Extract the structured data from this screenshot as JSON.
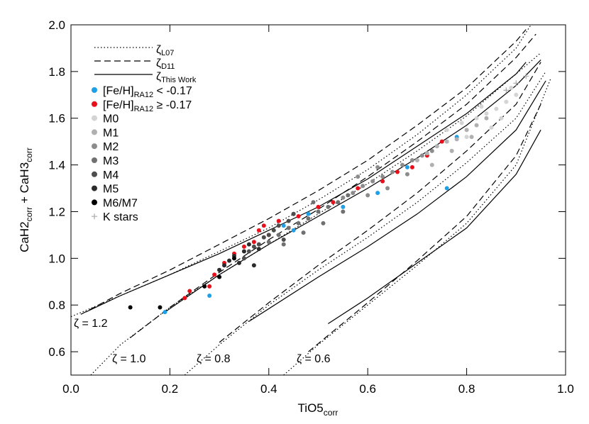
{
  "chart_data": {
    "type": "scatter",
    "x_label": {
      "main": "TiO5",
      "sub": "corr"
    },
    "y_label": {
      "main": "CaH2",
      "sub": "corr",
      "main2": " + CaH3",
      "sub2": "corr"
    },
    "xlim": [
      0.0,
      1.0
    ],
    "ylim": [
      0.5,
      2.0
    ],
    "xticks": [
      {
        "value": 0.0,
        "label": "0.0"
      },
      0.2,
      0.4,
      0.6,
      0.8,
      {
        "value": 1.0,
        "label": "1.0"
      }
    ],
    "yticks": [
      0.6,
      0.8,
      {
        "value": 1.0,
        "label": "1.0"
      },
      1.2,
      1.4,
      1.6,
      1.8,
      {
        "value": 2.0,
        "label": "2.0"
      }
    ],
    "line_styles": [
      {
        "symbol": "ζ",
        "sub": "L07",
        "dash": "dotted"
      },
      {
        "symbol": "ζ",
        "sub": "D11",
        "dash": "dashed"
      },
      {
        "symbol": "ζ",
        "sub": "This Work",
        "dash": "solid"
      }
    ],
    "curves": [
      {
        "dash": "dotted",
        "x": [
          0.0,
          0.1,
          0.2,
          0.3,
          0.4,
          0.5,
          0.6,
          0.7,
          0.8,
          0.9,
          0.93
        ],
        "y": [
          0.75,
          0.84,
          0.93,
          1.03,
          1.13,
          1.25,
          1.38,
          1.53,
          1.7,
          1.9,
          2.0
        ]
      },
      {
        "dash": "dashed",
        "x": [
          0.02,
          0.1,
          0.2,
          0.3,
          0.4,
          0.5,
          0.6,
          0.7,
          0.8,
          0.9,
          0.92
        ],
        "y": [
          0.76,
          0.85,
          0.95,
          1.06,
          1.17,
          1.29,
          1.42,
          1.57,
          1.73,
          1.93,
          1.98
        ]
      },
      {
        "dash": "solid",
        "x": [
          0.03,
          0.1,
          0.2,
          0.3,
          0.4,
          0.5,
          0.6,
          0.7,
          0.8,
          0.9,
          0.92
        ],
        "y": [
          0.77,
          0.84,
          0.93,
          1.02,
          1.12,
          1.22,
          1.34,
          1.48,
          1.62,
          1.79,
          1.84
        ]
      },
      {
        "dash": "dotted",
        "x": [
          0.04,
          0.1,
          0.2,
          0.3,
          0.4,
          0.5,
          0.6,
          0.7,
          0.8,
          0.9,
          0.95
        ],
        "y": [
          0.5,
          0.63,
          0.79,
          0.93,
          1.06,
          1.19,
          1.32,
          1.46,
          1.61,
          1.79,
          1.88
        ]
      },
      {
        "dash": "dashed",
        "x": [
          0.12,
          0.2,
          0.3,
          0.4,
          0.5,
          0.6,
          0.7,
          0.8,
          0.9,
          0.94
        ],
        "y": [
          0.66,
          0.79,
          0.94,
          1.08,
          1.21,
          1.35,
          1.5,
          1.66,
          1.86,
          1.96
        ]
      },
      {
        "dash": "solid",
        "x": [
          0.19,
          0.3,
          0.4,
          0.5,
          0.6,
          0.7,
          0.8,
          0.9,
          0.95
        ],
        "y": [
          0.77,
          0.93,
          1.06,
          1.18,
          1.3,
          1.43,
          1.57,
          1.74,
          1.85
        ]
      },
      {
        "dash": "dotted",
        "x": [
          0.23,
          0.3,
          0.4,
          0.5,
          0.6,
          0.7,
          0.8,
          0.9,
          0.96
        ],
        "y": [
          0.5,
          0.63,
          0.8,
          0.95,
          1.09,
          1.24,
          1.41,
          1.6,
          1.8
        ]
      },
      {
        "dash": "dashed",
        "x": [
          0.3,
          0.4,
          0.5,
          0.6,
          0.7,
          0.8,
          0.9,
          0.95
        ],
        "y": [
          0.64,
          0.81,
          0.97,
          1.12,
          1.28,
          1.46,
          1.66,
          1.84
        ]
      },
      {
        "dash": "solid",
        "x": [
          0.36,
          0.5,
          0.6,
          0.7,
          0.8,
          0.9,
          0.96
        ],
        "y": [
          0.73,
          0.92,
          1.05,
          1.19,
          1.35,
          1.55,
          1.76
        ]
      },
      {
        "dash": "dotted",
        "x": [
          0.43,
          0.5,
          0.6,
          0.7,
          0.8,
          0.9,
          0.97
        ],
        "y": [
          0.5,
          0.63,
          0.8,
          0.97,
          1.15,
          1.4,
          1.77
        ]
      },
      {
        "dash": "dashed",
        "x": [
          0.48,
          0.6,
          0.7,
          0.8,
          0.9,
          0.95
        ],
        "y": [
          0.6,
          0.81,
          0.99,
          1.18,
          1.44,
          1.66
        ]
      },
      {
        "dash": "solid",
        "x": [
          0.52,
          0.6,
          0.7,
          0.8,
          0.9,
          0.95
        ],
        "y": [
          0.72,
          0.83,
          0.98,
          1.13,
          1.36,
          1.55
        ]
      }
    ],
    "annotations": [
      "ζ = 1.2",
      "ζ = 1.0",
      "ζ = 0.8",
      "ζ = 0.6"
    ],
    "series": [
      {
        "name": "[Fe/H]",
        "sub": "RA12",
        "rest": " < -0.17",
        "color": "#1ea0e8",
        "marker": "dot",
        "x": [
          0.19,
          0.28,
          0.43,
          0.45,
          0.48,
          0.55,
          0.62,
          0.68,
          0.76,
          0.78
        ],
        "y": [
          0.77,
          0.84,
          1.14,
          1.12,
          1.19,
          1.22,
          1.28,
          1.39,
          1.3,
          1.52
        ]
      },
      {
        "name": "[Fe/H]",
        "sub": "RA12",
        "rest": " ≥ -0.17",
        "color": "#e8101a",
        "marker": "dot",
        "x": [
          0.23,
          0.24,
          0.28,
          0.29,
          0.31,
          0.33,
          0.35,
          0.37,
          0.38,
          0.39,
          0.4,
          0.42,
          0.46,
          0.5,
          0.53,
          0.58,
          0.63,
          0.66,
          0.69,
          0.72,
          0.75
        ],
        "y": [
          0.83,
          0.86,
          0.88,
          0.93,
          0.98,
          1.02,
          1.05,
          1.07,
          1.12,
          1.14,
          1.1,
          1.16,
          1.18,
          1.22,
          1.24,
          1.3,
          1.33,
          1.37,
          1.39,
          1.44,
          1.5
        ]
      },
      {
        "name": "M0",
        "color": "#d4d4d4",
        "marker": "dot",
        "x": [
          0.76,
          0.79,
          0.82,
          0.84,
          0.86,
          0.88,
          0.9,
          0.8,
          0.85,
          0.87,
          0.83,
          0.89
        ],
        "y": [
          1.55,
          1.58,
          1.6,
          1.62,
          1.64,
          1.67,
          1.7,
          1.52,
          1.56,
          1.6,
          1.65,
          1.73
        ]
      },
      {
        "name": "M1",
        "color": "#b0b0b0",
        "marker": "dot",
        "x": [
          0.7,
          0.72,
          0.74,
          0.76,
          0.78,
          0.8,
          0.82,
          0.84,
          0.73,
          0.77,
          0.81
        ],
        "y": [
          1.42,
          1.45,
          1.48,
          1.5,
          1.51,
          1.55,
          1.57,
          1.6,
          1.4,
          1.46,
          1.52
        ]
      },
      {
        "name": "M2",
        "color": "#8c8c8c",
        "marker": "dot",
        "x": [
          0.55,
          0.57,
          0.59,
          0.61,
          0.63,
          0.65,
          0.67,
          0.69,
          0.71,
          0.73,
          0.6,
          0.64,
          0.68,
          0.58,
          0.62
        ],
        "y": [
          1.26,
          1.28,
          1.31,
          1.33,
          1.35,
          1.37,
          1.4,
          1.42,
          1.44,
          1.46,
          1.27,
          1.3,
          1.36,
          1.35,
          1.39
        ]
      },
      {
        "name": "M3",
        "color": "#707070",
        "marker": "dot",
        "x": [
          0.4,
          0.42,
          0.44,
          0.46,
          0.48,
          0.5,
          0.52,
          0.54,
          0.56,
          0.43,
          0.47,
          0.51,
          0.55,
          0.45,
          0.49
        ],
        "y": [
          1.07,
          1.1,
          1.13,
          1.15,
          1.17,
          1.2,
          1.22,
          1.24,
          1.27,
          1.06,
          1.11,
          1.15,
          1.2,
          1.19,
          1.24
        ]
      },
      {
        "name": "M4",
        "color": "#4d4d4d",
        "marker": "dot",
        "x": [
          0.35,
          0.36,
          0.37,
          0.38,
          0.39,
          0.4,
          0.41,
          0.42,
          0.44,
          0.45,
          0.43
        ],
        "y": [
          1.0,
          1.03,
          1.05,
          1.06,
          1.09,
          1.1,
          1.12,
          1.14,
          1.16,
          1.19,
          1.08
        ]
      },
      {
        "name": "M5",
        "color": "#2b2b2b",
        "marker": "dot",
        "x": [
          0.3,
          0.31,
          0.32,
          0.33,
          0.34,
          0.35,
          0.36,
          0.37,
          0.38
        ],
        "y": [
          0.95,
          0.97,
          0.99,
          1.01,
          0.98,
          1.03,
          1.06,
          0.97,
          1.04
        ]
      },
      {
        "name": "M6/M7",
        "color": "#000000",
        "marker": "dot",
        "x": [
          0.12,
          0.18,
          0.27,
          0.3,
          0.33
        ],
        "y": [
          0.79,
          0.79,
          0.88,
          0.92,
          1.0
        ]
      },
      {
        "name": "K stars",
        "color": "#aaaaaa",
        "marker": "plus",
        "x": [
          0.9,
          0.92,
          0.88
        ],
        "y": [
          1.75,
          1.78,
          1.72
        ]
      }
    ]
  }
}
